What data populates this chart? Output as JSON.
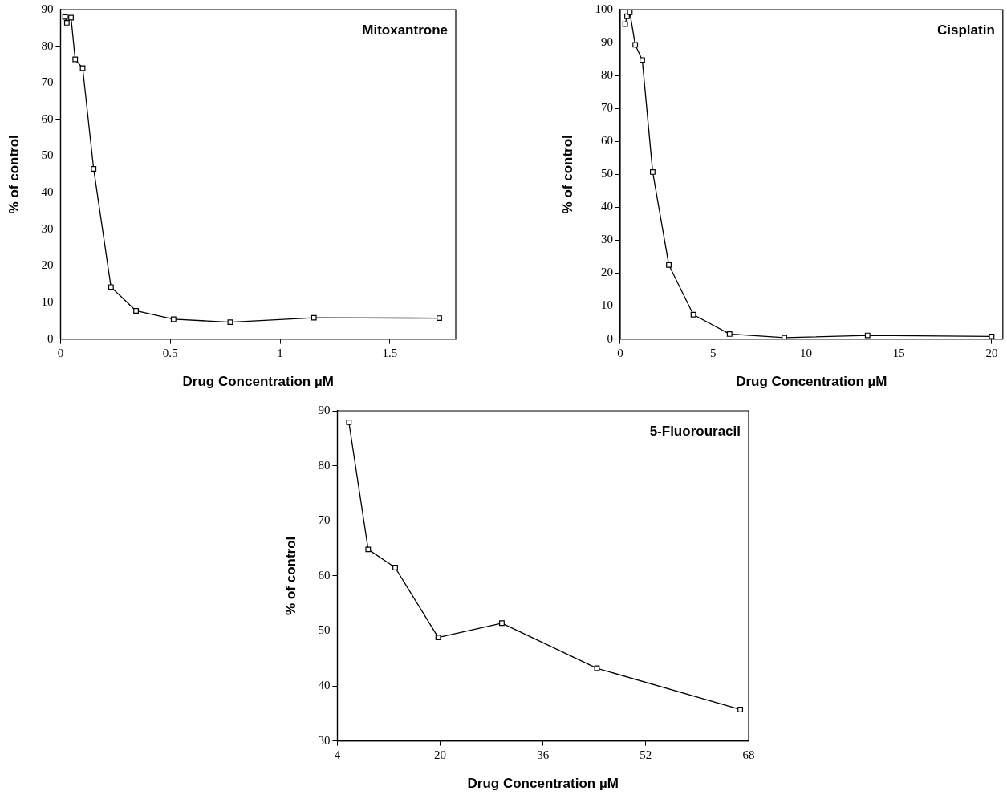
{
  "chart_data": [
    {
      "type": "line",
      "title": "Mitoxantrone",
      "xlabel": "Drug Concentration µM",
      "ylabel": "% of control",
      "marker": "square",
      "line_style": "solid",
      "legend": false,
      "xlim": [
        0,
        1.8
      ],
      "xticks": [
        0,
        0.5,
        1,
        1.5
      ],
      "ylim": [
        0,
        90
      ],
      "yticks": [
        0,
        10,
        20,
        30,
        40,
        50,
        60,
        70,
        80,
        90
      ],
      "series": [
        {
          "color": "#000000",
          "x": [
            0.021,
            0.029,
            0.048,
            0.067,
            0.101,
            0.151,
            0.23,
            0.344,
            0.515,
            0.773,
            1.154,
            1.725
          ],
          "values": [
            88.0,
            86.4,
            87.8,
            76.4,
            74.0,
            46.5,
            14.2,
            7.7,
            5.4,
            4.6,
            5.8,
            5.7
          ]
        }
      ]
    },
    {
      "type": "line",
      "title": "Cisplatin",
      "xlabel": "Drug Concentration µM",
      "ylabel": "% of control",
      "marker": "square",
      "line_style": "solid",
      "legend": false,
      "xlim": [
        0,
        20.6
      ],
      "xticks": [
        0,
        5,
        10,
        15,
        20
      ],
      "ylim": [
        0,
        100
      ],
      "yticks": [
        0,
        10,
        20,
        30,
        40,
        50,
        60,
        70,
        80,
        90,
        100
      ],
      "series": [
        {
          "color": "#000000",
          "x": [
            0.27,
            0.37,
            0.52,
            0.81,
            1.19,
            1.75,
            2.62,
            3.94,
            5.89,
            8.84,
            13.32,
            20.0
          ],
          "values": [
            95.6,
            98.0,
            99.2,
            89.3,
            84.7,
            50.7,
            22.5,
            7.4,
            1.5,
            0.4,
            1.1,
            0.8
          ]
        }
      ]
    },
    {
      "type": "line",
      "title": "5-Fluorouracil",
      "xlabel": "Drug Concentration µM",
      "ylabel": "% of control",
      "marker": "square",
      "line_style": "solid",
      "legend": false,
      "xlim": [
        4,
        68
      ],
      "xticks": [
        4,
        20,
        36,
        52,
        68
      ],
      "ylim": [
        30,
        90
      ],
      "yticks": [
        30,
        40,
        50,
        60,
        70,
        80,
        90
      ],
      "series": [
        {
          "color": "#000000",
          "x": [
            5.8,
            8.8,
            13.0,
            19.7,
            29.6,
            44.4,
            66.7
          ],
          "values": [
            87.9,
            64.8,
            61.5,
            48.8,
            51.4,
            43.2,
            35.7
          ]
        }
      ]
    }
  ]
}
